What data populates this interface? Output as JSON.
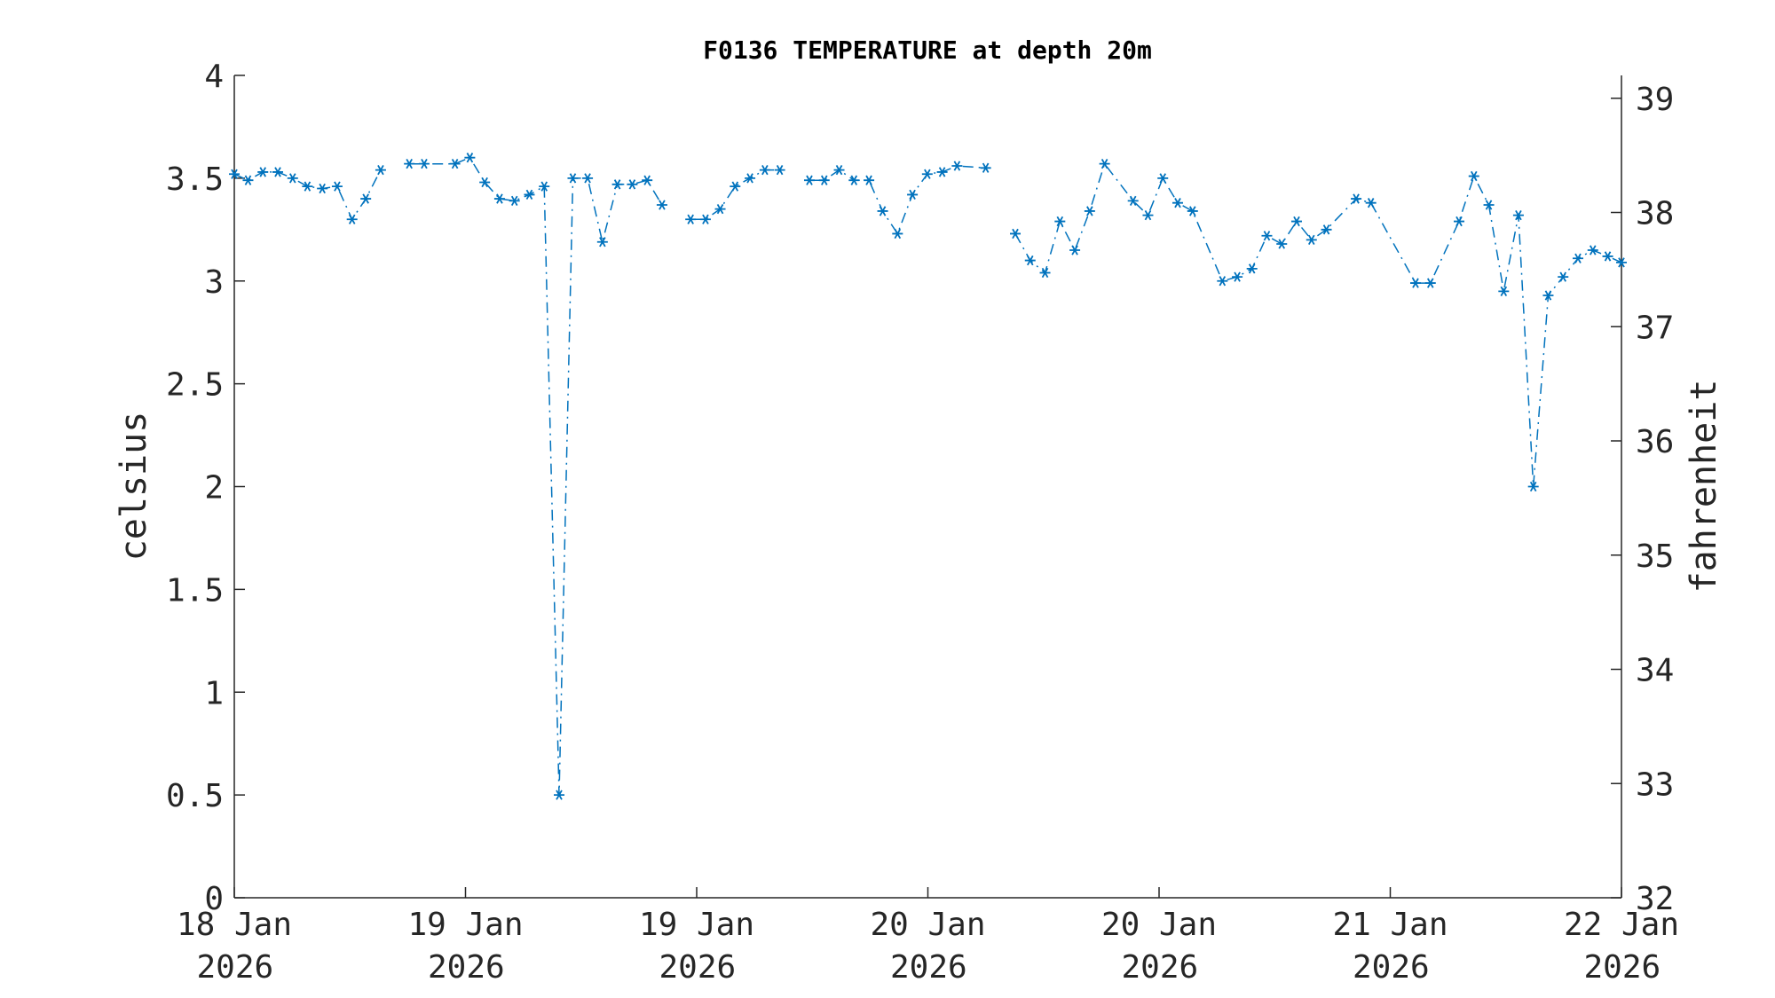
{
  "chart_data": {
    "type": "line",
    "title": "F0136 TEMPERATURE at depth 20m",
    "ylabel": "celsius",
    "y2label": "fahrenheit",
    "color": "#0072bd",
    "line_style": "dash-dot",
    "marker": "asterisk",
    "grid": false,
    "xlim": [
      0,
      96
    ],
    "xticks": [
      {
        "value": 0,
        "label": "18 Jan 2026"
      },
      {
        "value": 16,
        "label": "19 Jan 2026"
      },
      {
        "value": 32,
        "label": "19 Jan 2026"
      },
      {
        "value": 48,
        "label": "20 Jan 2026"
      },
      {
        "value": 64,
        "label": "20 Jan 2026"
      },
      {
        "value": 80,
        "label": "21 Jan 2026"
      },
      {
        "value": 96,
        "label": "22 Jan 2026"
      }
    ],
    "ylim": [
      0,
      4
    ],
    "yticks": [
      0,
      0.5,
      1,
      1.5,
      2,
      2.5,
      3,
      3.5,
      4
    ],
    "y2lim": [
      32,
      39.2
    ],
    "y2ticks": [
      32,
      33,
      34,
      35,
      36,
      37,
      38,
      39
    ],
    "x": [
      0,
      0.95,
      1.98,
      3.01,
      4.04,
      5.06,
      6.09,
      7.12,
      8.15,
      9.1,
      10.13,
      11.1,
      12.11,
      13.14,
      15.27,
      16.3,
      17.33,
      18.36,
      19.39,
      20.42,
      21.45,
      22.48,
      23.43,
      24.45,
      25.48,
      26.51,
      27.54,
      28.57,
      29.6,
      30.6,
      31.58,
      32.61,
      33.63,
      34.66,
      35.69,
      36.72,
      37.75,
      38.8,
      39.8,
      40.83,
      41.86,
      42.89,
      43.92,
      44.87,
      45.9,
      46.93,
      47.96,
      48.99,
      50.02,
      52.0,
      53.0,
      54.05,
      55.08,
      56.11,
      57.14,
      58.17,
      59.2,
      60.23,
      62.2,
      63.23,
      64.26,
      65.29,
      66.32,
      68.38,
      69.41,
      70.43,
      71.46,
      72.49,
      73.52,
      74.55,
      75.58,
      77.64,
      78.66,
      81.75,
      82.78,
      84.76,
      85.79,
      86.82,
      87.85,
      88.87,
      89.9,
      90.93,
      91.96,
      92.99,
      94.02,
      95.05,
      96.0
    ],
    "values": [
      3.52,
      3.49,
      3.53,
      3.53,
      3.5,
      3.46,
      3.45,
      3.46,
      3.3,
      3.4,
      3.54,
      null,
      3.57,
      3.57,
      3.57,
      3.6,
      3.48,
      3.4,
      3.39,
      3.42,
      3.46,
      0.5,
      3.5,
      3.5,
      3.19,
      3.47,
      3.47,
      3.49,
      3.37,
      null,
      3.3,
      3.3,
      3.35,
      3.46,
      3.5,
      3.54,
      3.54,
      null,
      3.49,
      3.49,
      3.54,
      3.49,
      3.49,
      3.34,
      3.23,
      3.42,
      3.52,
      3.53,
      3.56,
      3.55,
      null,
      3.23,
      3.1,
      3.04,
      3.29,
      3.15,
      3.34,
      3.57,
      3.39,
      3.32,
      3.5,
      3.38,
      3.34,
      3.0,
      3.02,
      3.06,
      3.22,
      3.18,
      3.29,
      3.2,
      3.25,
      3.4,
      3.38,
      2.99,
      2.99,
      3.29,
      3.51,
      3.37,
      2.95,
      3.32,
      2.0,
      2.93,
      3.02,
      3.11,
      3.15,
      3.12,
      3.09
    ]
  }
}
